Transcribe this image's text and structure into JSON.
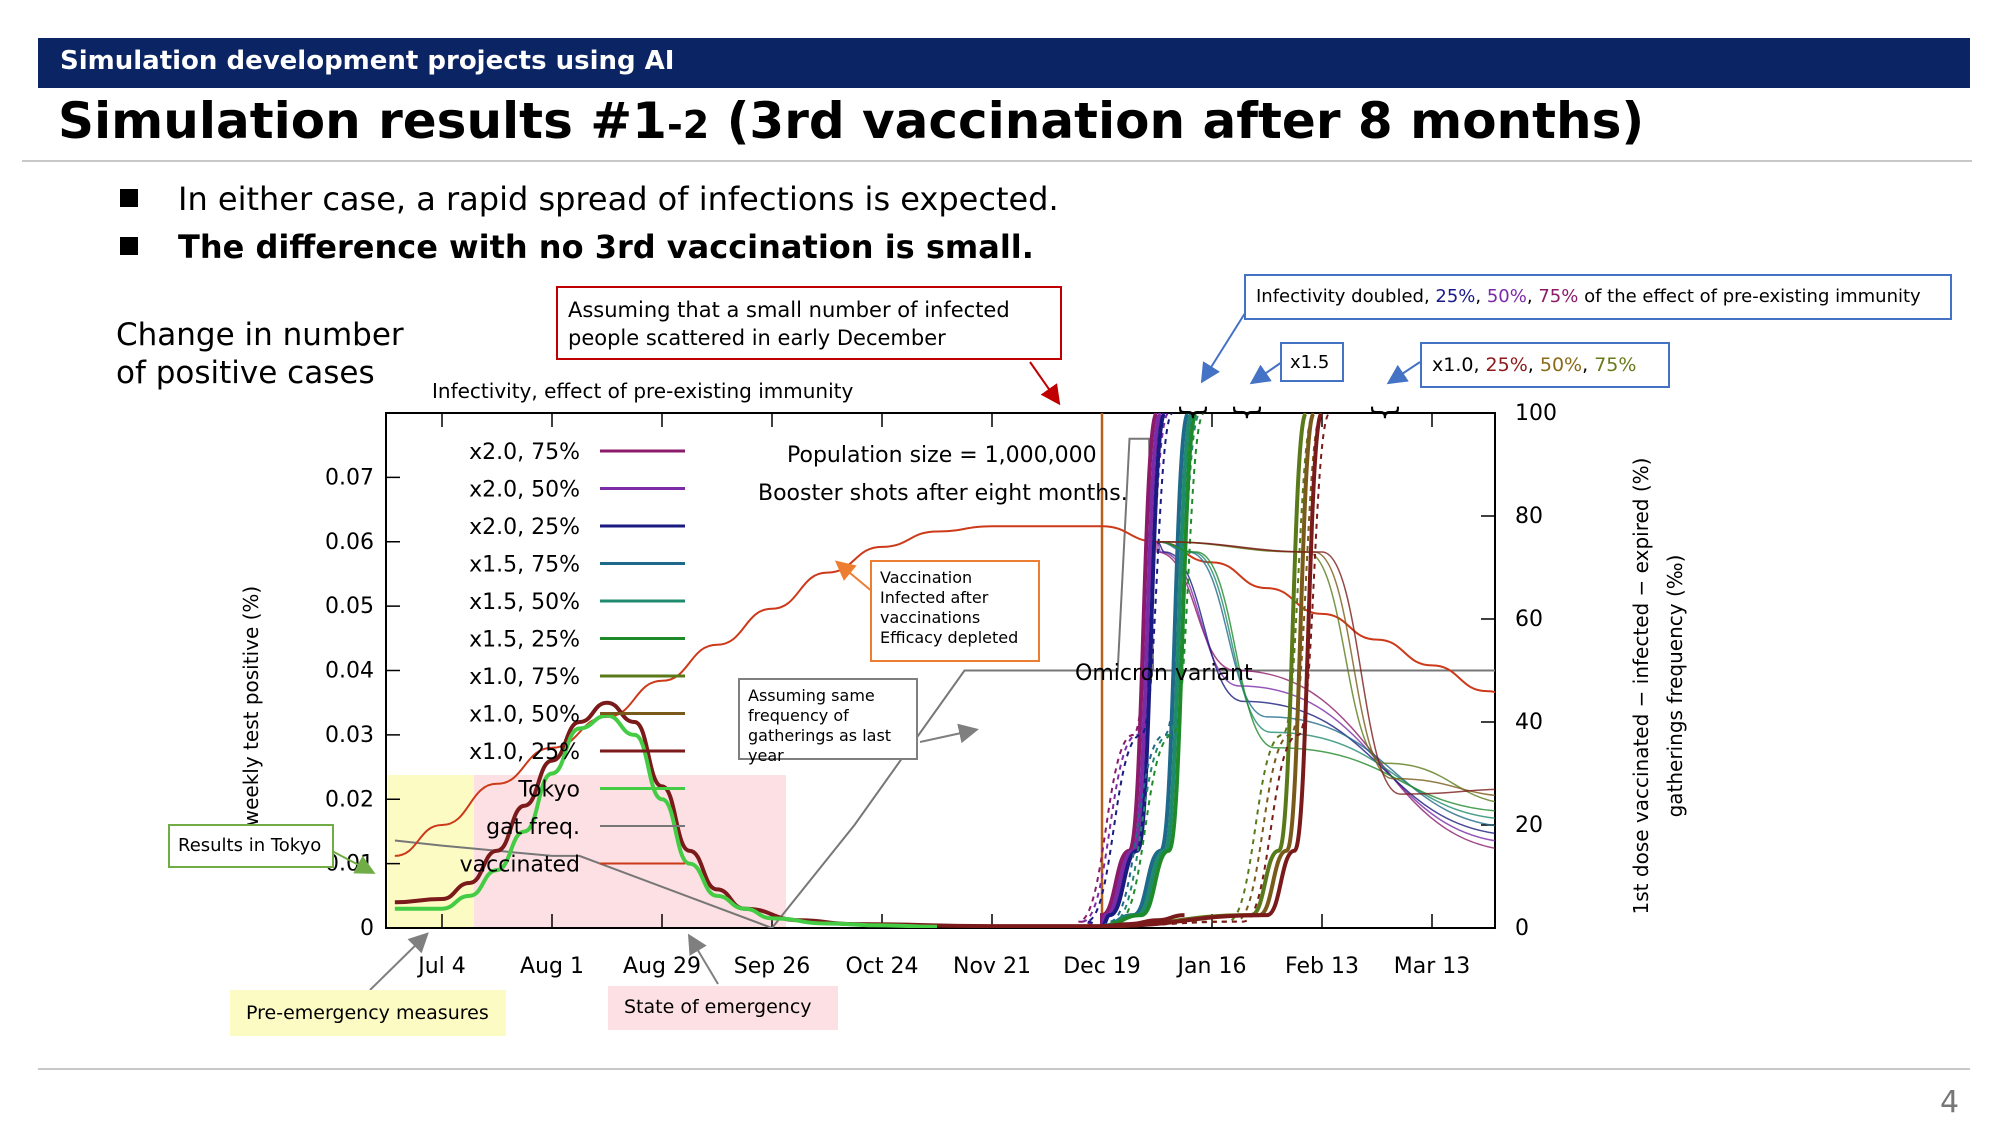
{
  "header": {
    "title": "Simulation development projects using AI"
  },
  "slide": {
    "title_main": "Simulation results #1",
    "title_small": "-2",
    "title_rest": " (3rd vaccination after 8 months)",
    "bullets": [
      "In either case, a rapid spread of infections is expected.",
      "The difference with no 3rd vaccination is small."
    ],
    "side_label_line1": "Change in number",
    "side_label_line2": "of positive cases",
    "page_number": "4"
  },
  "annotations": {
    "infectivity_header": "Infectivity, effect of pre-existing immunity",
    "assuming_small_line1": "Assuming that a small number of infected",
    "assuming_small_line2": "people scattered in early December",
    "doubled_prefix": "Infectivity doubled, ",
    "doubled_p25": "25%",
    "doubled_p50": "50%",
    "doubled_p75": "75%",
    "doubled_suffix": " of the effect of pre-existing immunity",
    "x15": "x1.5",
    "x10_prefix": "x1.0, ",
    "x10_p25": "25%",
    "x10_p50": "50%",
    "x10_p75": "75%",
    "x10_sep": ", ",
    "population": "Population size = 1,000,000",
    "booster": "Booster shots after eight months.",
    "vacc_box_1": "Vaccination",
    "vacc_box_2": "Infected after",
    "vacc_box_3": "vaccinations",
    "vacc_box_4": "Efficacy depleted",
    "same_freq_1": "Assuming same",
    "same_freq_2": "frequency of",
    "same_freq_3": "gatherings as last year",
    "omicron": "Omicron variant",
    "results_tokyo": "Results in Tokyo",
    "pre_emergency": "Pre-emergency measures",
    "state_emergency": "State of emergency"
  },
  "colors": {
    "header_bg": "#0b2463",
    "pre_emergency_fill": "#fdfbc4",
    "emergency_fill": "#fde0e3",
    "red_box": "#c00000",
    "orange_box": "#ed7d31",
    "blue_box": "#4472c4",
    "green_box": "#70ad47",
    "grey_box": "#7f7f7f",
    "omicron_line": "#b8601a"
  },
  "chart_data": {
    "type": "line",
    "ylabel": "weekly test positive (%)",
    "y2label_line1": "1st dose vaccinated − infected − expired (%)",
    "y2label_line2": "gatherings frequency (‰)",
    "ylim": [
      0,
      0.08
    ],
    "y2lim": [
      0,
      100
    ],
    "yticks": [
      "0",
      "0.01",
      "0.02",
      "0.03",
      "0.04",
      "0.05",
      "0.06",
      "0.07"
    ],
    "y2ticks": [
      "0",
      "20",
      "40",
      "60",
      "80",
      "100"
    ],
    "xticks": [
      "Jul 4",
      "Aug 1",
      "Aug 29",
      "Sep 26",
      "Oct 24",
      "Nov 21",
      "Dec 19",
      "Jan 16",
      "Feb 13",
      "Mar 13"
    ],
    "x_unit": "days since Jul 4 (tick interval 28 days)",
    "legend": [
      {
        "name": "x2.0, 75%",
        "color": "#8b1a6a"
      },
      {
        "name": "x2.0, 50%",
        "color": "#7b2aa8"
      },
      {
        "name": "x2.0, 25%",
        "color": "#1a1a80"
      },
      {
        "name": "x1.5, 75%",
        "color": "#1f6a8a"
      },
      {
        "name": "x1.5, 50%",
        "color": "#1f8a6e"
      },
      {
        "name": "x1.5, 25%",
        "color": "#1f8a2a"
      },
      {
        "name": "x1.0, 75%",
        "color": "#5a7a1a"
      },
      {
        "name": "x1.0, 50%",
        "color": "#7a5a1a"
      },
      {
        "name": "x1.0, 25%",
        "color": "#7a1a1a"
      },
      {
        "name": "Tokyo",
        "color": "#44cc44"
      },
      {
        "name": "gat freq.",
        "color": "#777777"
      },
      {
        "name": "vaccinated",
        "color": "#cc3a1a"
      }
    ],
    "tokyo": [
      [
        -12,
        0.003
      ],
      [
        0,
        0.003
      ],
      [
        7,
        0.005
      ],
      [
        14,
        0.009
      ],
      [
        21,
        0.015
      ],
      [
        28,
        0.024
      ],
      [
        35,
        0.031
      ],
      [
        42,
        0.033
      ],
      [
        49,
        0.03
      ],
      [
        56,
        0.02
      ],
      [
        63,
        0.01
      ],
      [
        70,
        0.005
      ],
      [
        77,
        0.003
      ],
      [
        84,
        0.0015
      ],
      [
        98,
        0.0007
      ],
      [
        112,
        0.0004
      ],
      [
        126,
        0.0002
      ]
    ],
    "simulated_main": [
      [
        -12,
        0.004
      ],
      [
        0,
        0.0045
      ],
      [
        7,
        0.007
      ],
      [
        14,
        0.012
      ],
      [
        21,
        0.019
      ],
      [
        28,
        0.026
      ],
      [
        35,
        0.032
      ],
      [
        42,
        0.035
      ],
      [
        49,
        0.032
      ],
      [
        56,
        0.022
      ],
      [
        63,
        0.012
      ],
      [
        70,
        0.006
      ],
      [
        77,
        0.003
      ],
      [
        91,
        0.0012
      ],
      [
        105,
        0.0006
      ],
      [
        140,
        0.0003
      ],
      [
        168,
        0.0003
      ],
      [
        175,
        0.0006
      ],
      [
        182,
        0.0012
      ],
      [
        189,
        0.002
      ]
    ],
    "vaccinated_pct": [
      [
        -12,
        14
      ],
      [
        0,
        20
      ],
      [
        14,
        28
      ],
      [
        28,
        35
      ],
      [
        42,
        41
      ],
      [
        56,
        48
      ],
      [
        70,
        55
      ],
      [
        84,
        62
      ],
      [
        98,
        69
      ],
      [
        112,
        74
      ],
      [
        126,
        77
      ],
      [
        140,
        78
      ],
      [
        154,
        78
      ],
      [
        168,
        78
      ],
      [
        182,
        75
      ],
      [
        196,
        71
      ],
      [
        210,
        66
      ],
      [
        224,
        61
      ],
      [
        238,
        56
      ],
      [
        252,
        51
      ],
      [
        266,
        46
      ],
      [
        275,
        44
      ]
    ],
    "gat_freq_pct": [
      [
        -12,
        17
      ],
      [
        0,
        16
      ],
      [
        14,
        15
      ],
      [
        28,
        14
      ],
      [
        35,
        14
      ],
      [
        84,
        0
      ],
      [
        105,
        20
      ],
      [
        133,
        50
      ],
      [
        172,
        50
      ],
      [
        175,
        95
      ],
      [
        180,
        95
      ],
      [
        181,
        50
      ],
      [
        275,
        50
      ]
    ],
    "omicron_day": 168
  }
}
